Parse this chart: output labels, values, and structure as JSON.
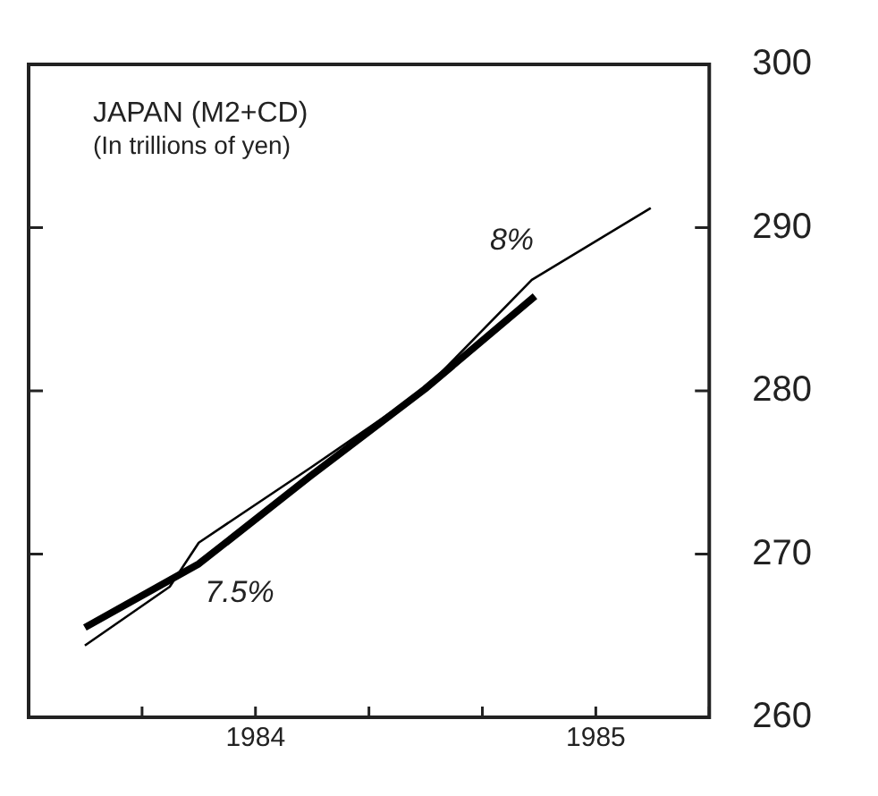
{
  "chart_data": {
    "type": "line",
    "title": "JAPAN (M2+CD)",
    "subtitle": "(In trillions of yen)",
    "xlim": [
      1984,
      1985.5
    ],
    "xticks": [
      {
        "value": 1984,
        "label": null
      },
      {
        "value": 1984.25,
        "label": null
      },
      {
        "value": 1984.5,
        "label": "1984"
      },
      {
        "value": 1984.75,
        "label": null
      },
      {
        "value": 1985,
        "label": null
      },
      {
        "value": 1985.25,
        "label": "1985"
      },
      {
        "value": 1985.5,
        "label": null
      }
    ],
    "ylim": [
      260,
      300
    ],
    "yticks": [
      260,
      270,
      280,
      290,
      300
    ],
    "series": [
      {
        "color": "#000000",
        "x": [
          1984.124,
          1984.311,
          1984.375,
          1984.622,
          1984.873,
          1985.109,
          1985.371
        ],
        "values": [
          264.4,
          268.0,
          270.7,
          275.3,
          280.1,
          286.8,
          291.2
        ]
      },
      {
        "color": "#000000",
        "x": [
          1984.124,
          1984.375,
          1984.622,
          1984.873,
          1985.116
        ],
        "values": [
          265.5,
          269.4,
          274.8,
          280.1,
          285.8
        ]
      }
    ],
    "annotations": [
      "8%",
      "7.5%"
    ],
    "grid": false,
    "legend": false,
    "marker": "none",
    "line_style": "solid"
  }
}
